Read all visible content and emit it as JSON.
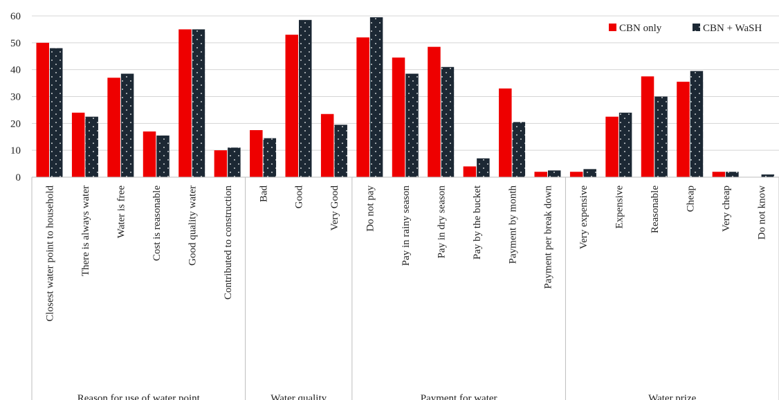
{
  "chart_data": {
    "type": "bar",
    "title": "",
    "xlabel": "",
    "ylabel": "",
    "ylim": [
      0,
      60
    ],
    "yticks": [
      0,
      10,
      20,
      30,
      40,
      50,
      60
    ],
    "grid": true,
    "legend_position": "top-right",
    "colors": {
      "CBN only": "#ee0000",
      "CBN + WaSH": "#1c2834",
      "dots": "#ffffff"
    },
    "categories": [
      "Closest water point to household",
      "There is always water",
      "Water is free",
      "Cost is reasonable",
      "Good quality water",
      "Contributed to construction",
      "Bad",
      "Good",
      "Very Good",
      "Do not pay",
      "Pay in rainy season",
      "Pay in dry season",
      "Pay by the bucket",
      "Payment by month",
      "Payment per break down",
      "Very expensive",
      "Expensive",
      "Reasonable",
      "Cheap",
      "Very cheap",
      "Do not know"
    ],
    "groups": [
      {
        "label": "Reason for use of water point",
        "count": 6
      },
      {
        "label": "Water quality",
        "count": 3
      },
      {
        "label": "Payment for water",
        "count": 6
      },
      {
        "label": "Water prize",
        "count": 6
      }
    ],
    "series": [
      {
        "name": "CBN only",
        "values": [
          50,
          24,
          37,
          17,
          55,
          10,
          17.5,
          53,
          23.5,
          52,
          44.5,
          48.5,
          4,
          33,
          2,
          2,
          22.5,
          37.5,
          35.5,
          2,
          0
        ]
      },
      {
        "name": "CBN + WaSH",
        "values": [
          48,
          22.5,
          38.5,
          15.5,
          55,
          11,
          14.5,
          58.5,
          19.5,
          59.5,
          38.5,
          41,
          7,
          20.5,
          2.5,
          3,
          24,
          30,
          39.5,
          2,
          1
        ]
      }
    ]
  }
}
